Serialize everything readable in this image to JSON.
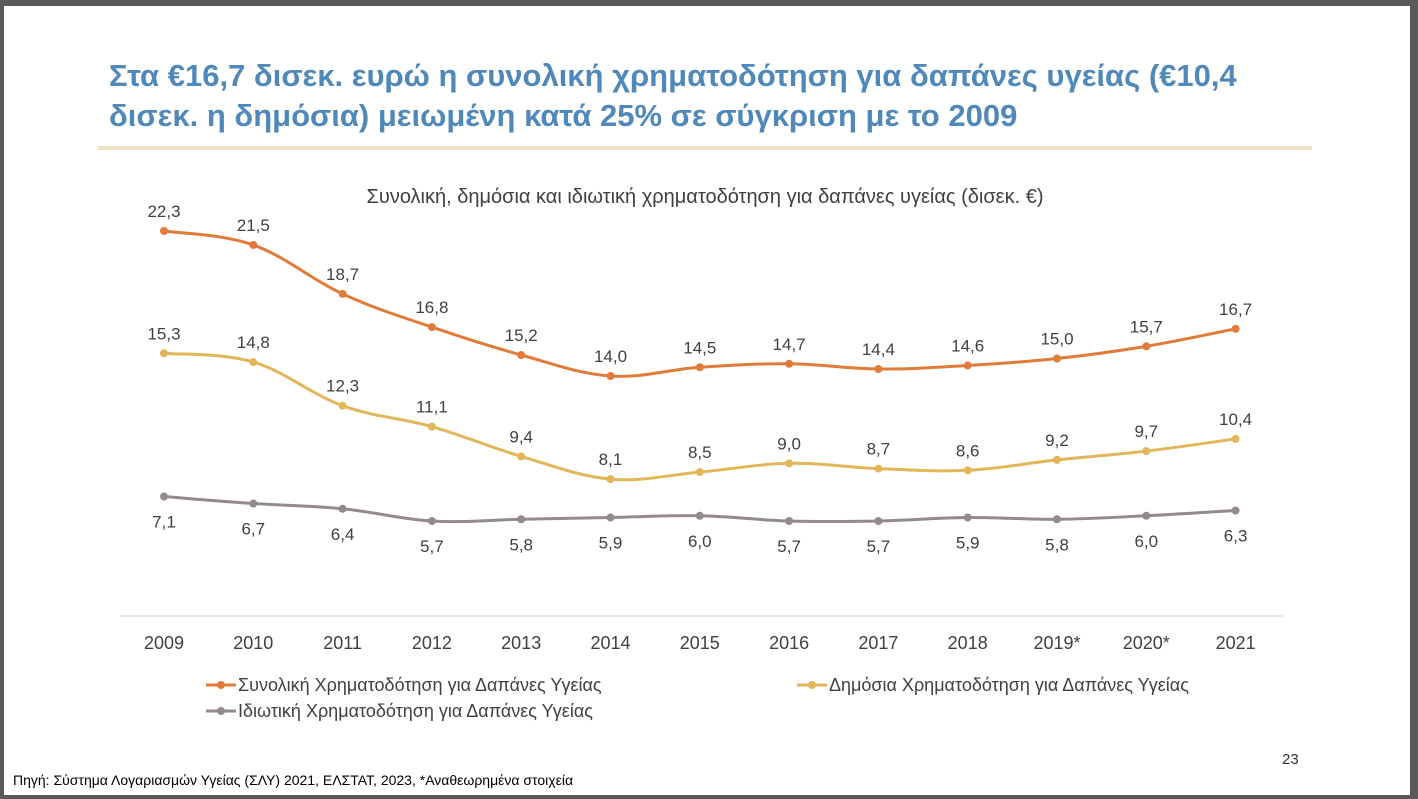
{
  "slide": {
    "headline": "Στα €16,7 δισεκ. ευρώ η συνολική χρηματοδότηση για δαπάνες υγείας (€10,4 δισεκ. η δημόσια) μειωμένη κατά 25% σε σύγκριση με το 2009",
    "footnote": "Πηγή: Σύστημα Λογαριασμών Υγείας (ΣΛΥ) 2021, ΕΛΣΤΑΤ, 2023, *Αναθεωρημένα στοιχεία",
    "page_number": "23"
  },
  "chart_data": {
    "type": "line",
    "title": "Συνολική, δημόσια και ιδιωτική χρηματοδότηση για δαπάνες υγείας (δισεκ. €)",
    "categories": [
      "2009",
      "2010",
      "2011",
      "2012",
      "2013",
      "2014",
      "2015",
      "2016",
      "2017",
      "2018",
      "2019*",
      "2020*",
      "2021"
    ],
    "ylim": [
      0,
      24
    ],
    "grid": false,
    "legend_position": "bottom",
    "series": [
      {
        "name": "Συνολική Χρηματοδότηση για Δαπάνες Υγείας",
        "color": "#e07b39",
        "values": [
          22.3,
          21.5,
          18.7,
          16.8,
          15.2,
          14.0,
          14.5,
          14.7,
          14.4,
          14.6,
          15.0,
          15.7,
          16.7
        ],
        "labels": [
          "22,3",
          "21,5",
          "18,7",
          "16,8",
          "15,2",
          "14,0",
          "14,5",
          "14,7",
          "14,4",
          "14,6",
          "15,0",
          "15,7",
          "16,7"
        ],
        "label_position": "above"
      },
      {
        "name": "Δημόσια Χρηματοδότηση για Δαπάνες Υγείας",
        "color": "#e2b659",
        "values": [
          15.3,
          14.8,
          12.3,
          11.1,
          9.4,
          8.1,
          8.5,
          9.0,
          8.7,
          8.6,
          9.2,
          9.7,
          10.4
        ],
        "labels": [
          "15,3",
          "14,8",
          "12,3",
          "11,1",
          "9,4",
          "8,1",
          "8,5",
          "9,0",
          "8,7",
          "8,6",
          "9,2",
          "9,7",
          "10,4"
        ],
        "label_position": "above"
      },
      {
        "name": "Ιδιωτική Χρηματοδότηση για Δαπάνες Υγείας",
        "color": "#948a8b",
        "values": [
          7.1,
          6.7,
          6.4,
          5.7,
          5.8,
          5.9,
          6.0,
          5.7,
          5.7,
          5.9,
          5.8,
          6.0,
          6.3
        ],
        "labels": [
          "7,1",
          "6,7",
          "6,4",
          "5,7",
          "5,8",
          "5,9",
          "6,0",
          "5,7",
          "5,7",
          "5,9",
          "5,8",
          "6,0",
          "6,3"
        ],
        "label_position": "below"
      }
    ]
  }
}
